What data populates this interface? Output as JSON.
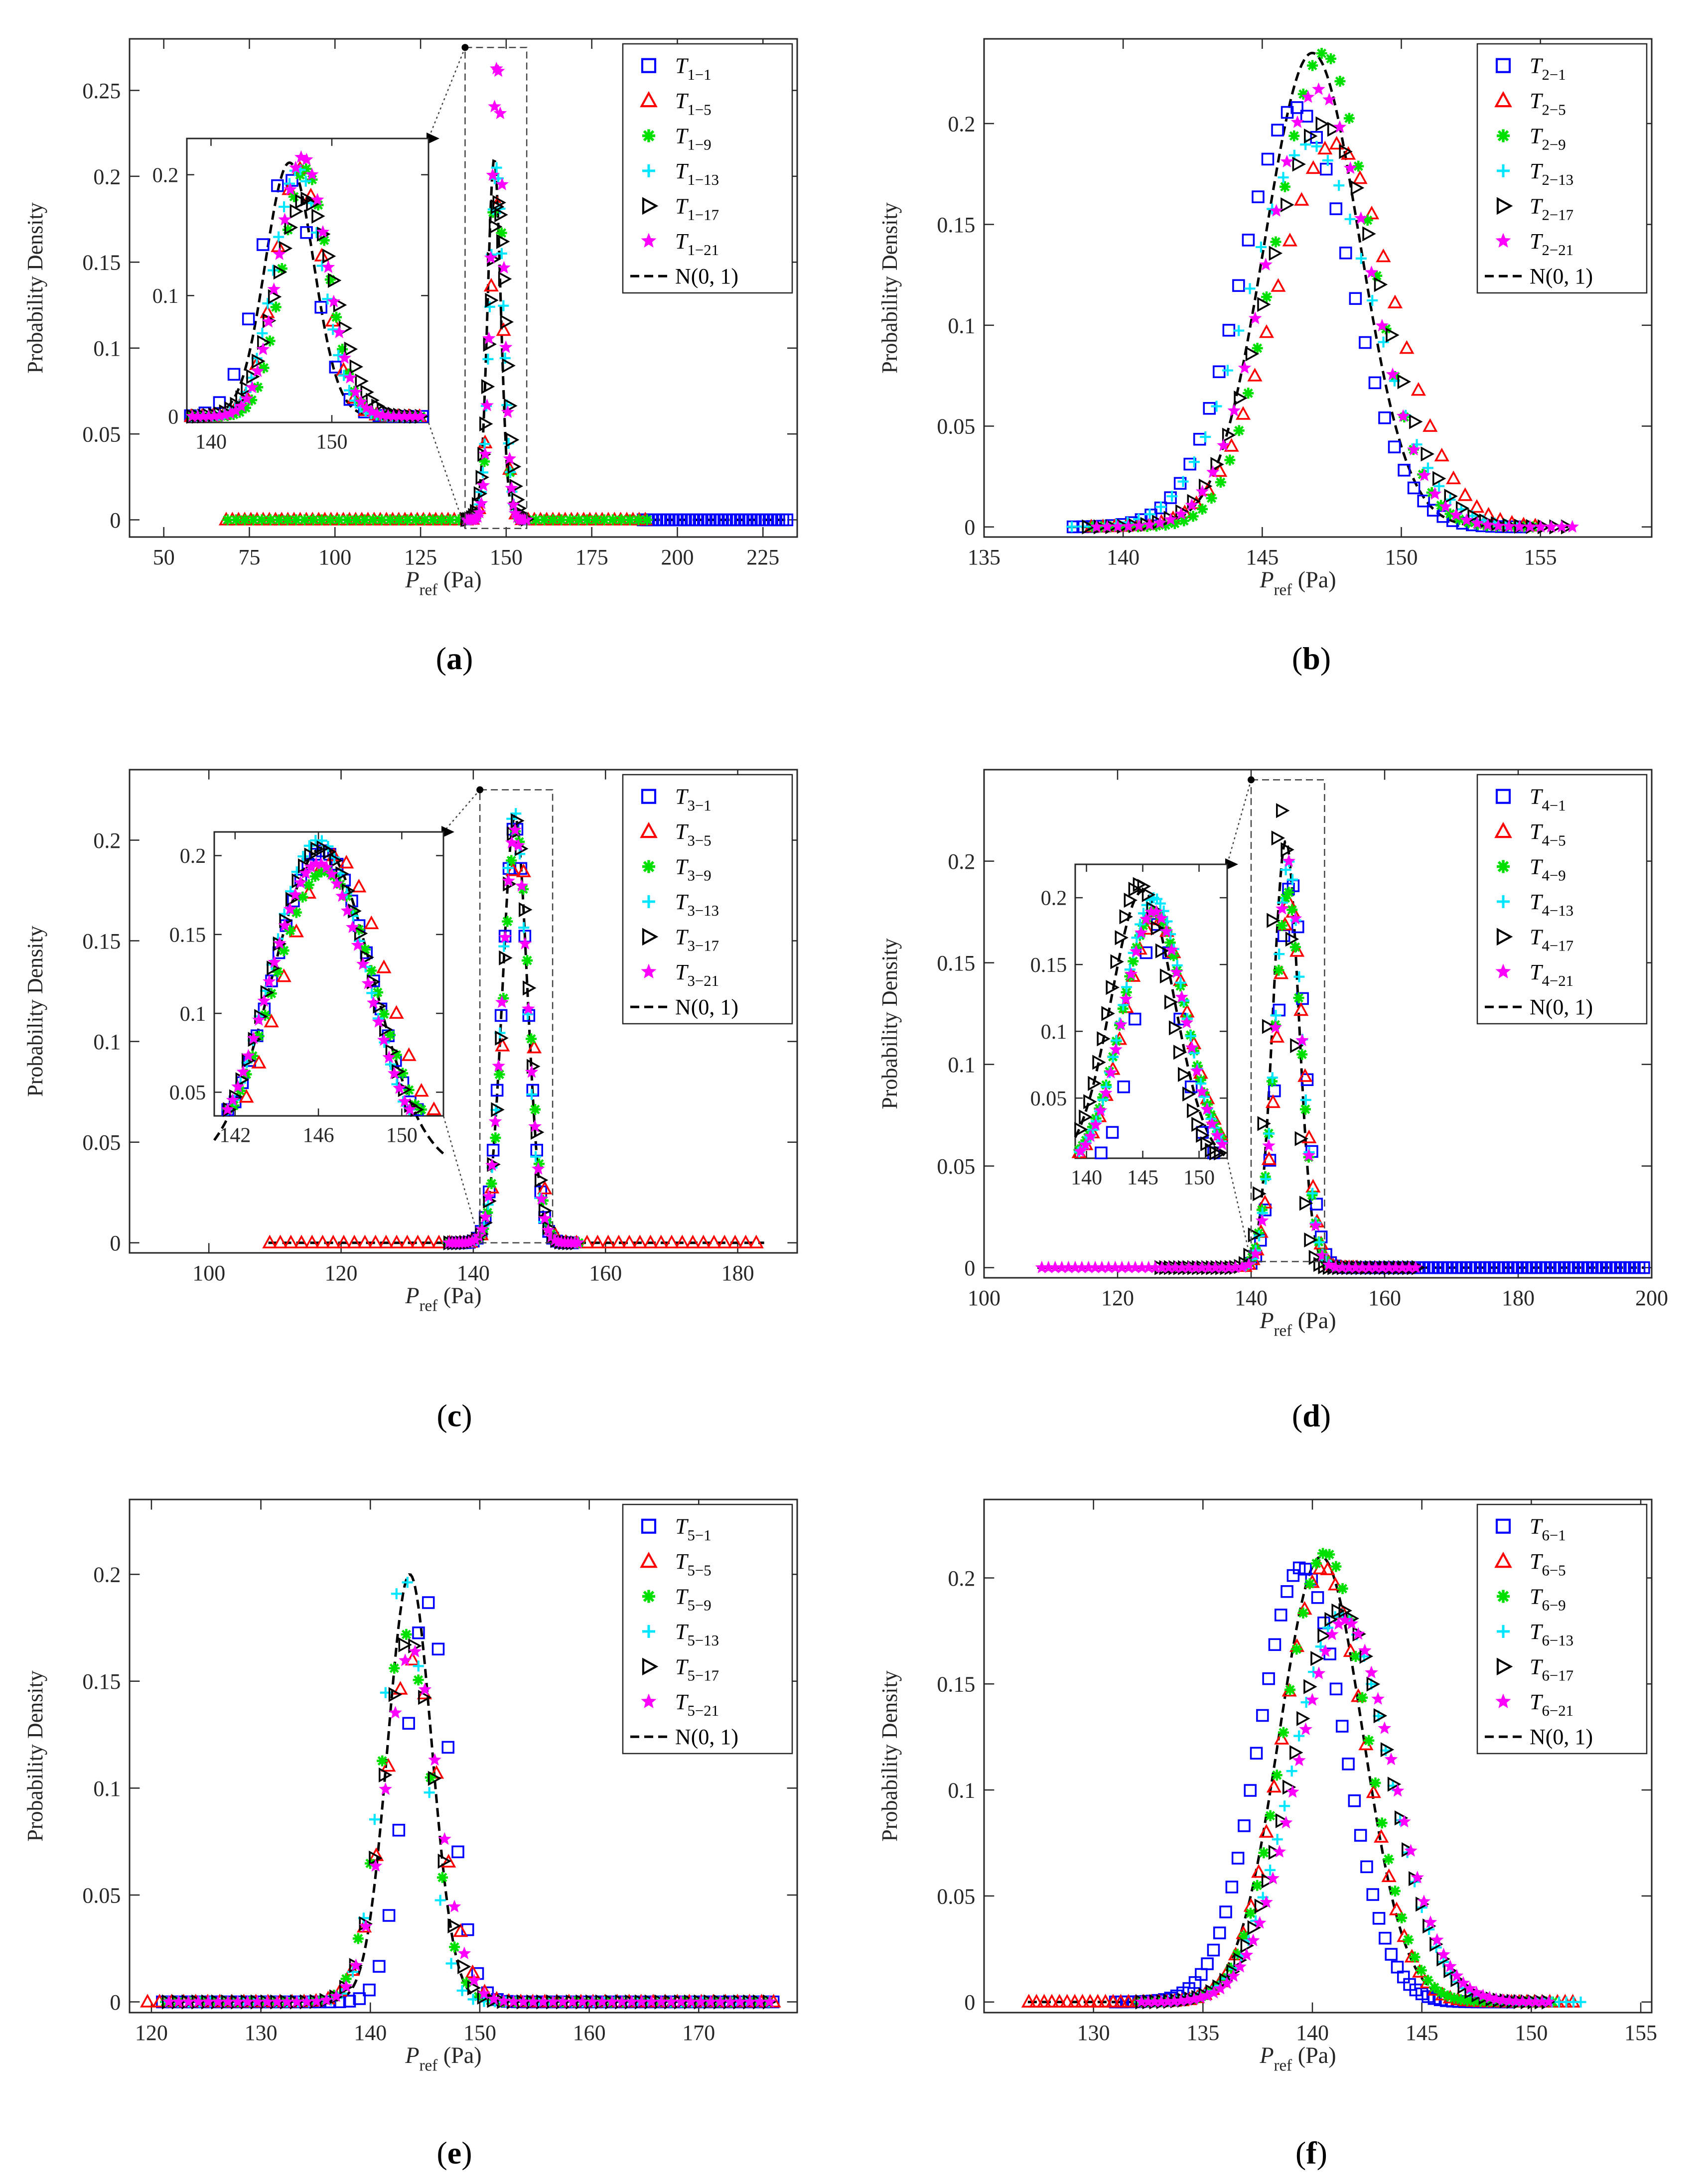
{
  "figure": {
    "panel_labels": [
      "(a)",
      "(b)",
      "(c)",
      "(d)",
      "(e)",
      "(f)"
    ]
  },
  "common": {
    "ylabel": "Probability Density",
    "xlabel_main": "P",
    "xlabel_sub": "ref",
    "xlabel_unit": "(Pa)",
    "legend_ref_label": "N(0, 1)",
    "series_suffixes": [
      "1",
      "5",
      "9",
      "13",
      "17",
      "21"
    ],
    "series_colors": [
      "#0000ff",
      "#ff0000",
      "#00e000",
      "#00e6ff",
      "#000000",
      "#ff00ff"
    ],
    "series_markers": [
      "square",
      "triangle",
      "asterisk",
      "plus",
      "triangle-right",
      "star"
    ],
    "ref_color": "#000000"
  },
  "chart_data": [
    {
      "id": "a",
      "type": "scatter",
      "title": "",
      "group": "1",
      "xlabel": "P_ref (Pa)",
      "ylabel": "Probability Density",
      "xlim": [
        40,
        235
      ],
      "ylim": [
        -0.01,
        0.28
      ],
      "xticks": [
        50,
        75,
        100,
        125,
        150,
        175,
        200,
        225
      ],
      "yticks": [
        0,
        0.05,
        0.1,
        0.15,
        0.2,
        0.25
      ],
      "ytick_labels": [
        "0",
        "0.05",
        "0.1",
        "0.15",
        "0.2",
        "0.25"
      ],
      "legend_position": "top-right",
      "series": [
        {
          "name": "T1-1",
          "mu": 144.5,
          "sigma": 2.0,
          "peak": 0.21,
          "range": [
            190,
            232
          ],
          "step": 1.2
        },
        {
          "name": "T1-5",
          "mu": 147.2,
          "sigma": 2.0,
          "peak": 0.185,
          "range": [
            68,
            192
          ],
          "step": 1.8
        },
        {
          "name": "T1-9",
          "mu": 147.3,
          "sigma": 1.9,
          "peak": 0.215,
          "range": [
            68,
            192
          ],
          "step": 2.5
        },
        {
          "name": "T1-13",
          "mu": 147.2,
          "sigma": 2.0,
          "peak": 0.205,
          "range": [
            138,
            156
          ],
          "step": 0.5
        },
        {
          "name": "T1-17",
          "mu": 147.5,
          "sigma": 2.4,
          "peak": 0.185,
          "range": [
            138,
            156
          ],
          "step": 0.55
        },
        {
          "name": "T1-21",
          "mu": 147.4,
          "sigma": 1.8,
          "peak": 0.265,
          "range": [
            138,
            156
          ],
          "step": 0.55
        }
      ],
      "reference": {
        "name": "N(0, 1)",
        "mu": 146.5,
        "sigma": 1.9,
        "peak": 0.21,
        "range": [
          68,
          232
        ]
      },
      "zoom_box": {
        "x": [
          138,
          156
        ],
        "y": [
          -0.005,
          0.275
        ]
      },
      "inset": {
        "xlim": [
          138,
          158
        ],
        "ylim": [
          -0.005,
          0.23
        ],
        "xticks": [
          140,
          150
        ],
        "yticks": [
          0,
          0.1,
          0.2
        ],
        "ytick_labels": [
          "0",
          "0.1",
          "0.2"
        ],
        "ref": {
          "mu": 146.5,
          "sigma": 2.0,
          "peak": 0.21
        },
        "series": [
          {
            "mu": 146.2,
            "sigma": 2.3,
            "peak": 0.2,
            "step": 1.2
          },
          {
            "mu": 147.3,
            "sigma": 2.0,
            "peak": 0.205,
            "step": 0.9
          },
          {
            "mu": 147.8,
            "sigma": 1.9,
            "peak": 0.205,
            "step": 0.5
          },
          {
            "mu": 147.2,
            "sigma": 2.0,
            "peak": 0.205,
            "step": 0.45
          },
          {
            "mu": 147.8,
            "sigma": 2.4,
            "peak": 0.18,
            "step": 0.45
          },
          {
            "mu": 147.6,
            "sigma": 2.0,
            "peak": 0.215,
            "step": 0.45
          }
        ]
      }
    },
    {
      "id": "b",
      "type": "scatter",
      "title": "",
      "group": "2",
      "xlabel": "P_ref (Pa)",
      "ylabel": "Probability Density",
      "xlim": [
        135,
        159
      ],
      "ylim": [
        -0.005,
        0.242
      ],
      "xticks": [
        135,
        140,
        145,
        150,
        155
      ],
      "yticks": [
        0,
        0.05,
        0.1,
        0.15,
        0.2
      ],
      "ytick_labels": [
        "0",
        "0.05",
        "0.1",
        "0.15",
        "0.2"
      ],
      "legend_position": "top-right",
      "series": [
        {
          "name": "T2-1",
          "mu": 146.2,
          "sigma": 1.95,
          "peak": 0.208,
          "range": [
            138.2,
            154.5
          ],
          "step": 0.35
        },
        {
          "name": "T2-5",
          "mu": 147.6,
          "sigma": 2.1,
          "peak": 0.19,
          "range": [
            138.8,
            155
          ],
          "step": 0.42
        },
        {
          "name": "T2-9",
          "mu": 147.2,
          "sigma": 1.7,
          "peak": 0.235,
          "range": [
            138.8,
            155
          ],
          "step": 0.33
        },
        {
          "name": "T2-13",
          "mu": 146.7,
          "sigma": 2.2,
          "peak": 0.19,
          "range": [
            138,
            155
          ],
          "step": 0.4
        },
        {
          "name": "T2-17",
          "mu": 147.2,
          "sigma": 2.0,
          "peak": 0.2,
          "range": [
            138.5,
            156
          ],
          "step": 0.42
        },
        {
          "name": "T2-21",
          "mu": 147.0,
          "sigma": 1.85,
          "peak": 0.217,
          "range": [
            138.8,
            156.5
          ],
          "step": 0.38
        }
      ],
      "reference": {
        "name": "N(0, 1)",
        "mu": 146.8,
        "sigma": 1.7,
        "peak": 0.235,
        "range": [
          138,
          156
        ]
      }
    },
    {
      "id": "c",
      "type": "scatter",
      "title": "",
      "group": "3",
      "xlabel": "P_ref (Pa)",
      "ylabel": "Probability Density",
      "xlim": [
        88,
        189
      ],
      "ylim": [
        -0.005,
        0.235
      ],
      "xticks": [
        100,
        120,
        140,
        160,
        180
      ],
      "yticks": [
        0,
        0.05,
        0.1,
        0.15,
        0.2
      ],
      "ytick_labels": [
        "0",
        "0.05",
        "0.1",
        "0.15",
        "0.2"
      ],
      "legend_position": "top-right",
      "series": [
        {
          "name": "T3-1",
          "mu": 146.3,
          "sigma": 1.9,
          "peak": 0.208,
          "range": [
            137,
            155
          ],
          "step": 0.6
        },
        {
          "name": "T3-5",
          "mu": 146.8,
          "sigma": 2.0,
          "peak": 0.2,
          "range": [
            109,
            184
          ],
          "step": 1.6
        },
        {
          "name": "T3-9",
          "mu": 146.5,
          "sigma": 1.9,
          "peak": 0.205,
          "range": [
            136,
            156
          ],
          "step": 0.6
        },
        {
          "name": "T3-13",
          "mu": 146.2,
          "sigma": 1.8,
          "peak": 0.215,
          "range": [
            136,
            156
          ],
          "step": 0.6
        },
        {
          "name": "T3-17",
          "mu": 146.4,
          "sigma": 1.9,
          "peak": 0.21,
          "range": [
            136,
            156
          ],
          "step": 0.6
        },
        {
          "name": "T3-21",
          "mu": 146.3,
          "sigma": 1.9,
          "peak": 0.205,
          "range": [
            136,
            156
          ],
          "step": 0.5
        }
      ],
      "reference": {
        "name": "N(0, 1)",
        "mu": 146.3,
        "sigma": 1.85,
        "peak": 0.212,
        "range": [
          109,
          184
        ]
      },
      "zoom_box": {
        "x": [
          141,
          152
        ],
        "y": [
          0,
          0.225
        ]
      },
      "inset": {
        "xlim": [
          141,
          152
        ],
        "ylim": [
          0.035,
          0.215
        ],
        "xticks": [
          142,
          146,
          150
        ],
        "yticks": [
          0.05,
          0.1,
          0.15,
          0.2
        ],
        "ytick_labels": [
          "0.05",
          "0.1",
          "0.15",
          "0.2"
        ],
        "ref": {
          "mu": 146.2,
          "sigma": 2.4,
          "peak": 0.205
        },
        "series": [
          {
            "mu": 146.2,
            "sigma": 2.4,
            "peak": 0.203,
            "step": 0.35
          },
          {
            "mu": 146.8,
            "sigma": 2.5,
            "peak": 0.2,
            "step": 0.6
          },
          {
            "mu": 146.3,
            "sigma": 2.5,
            "peak": 0.19,
            "step": 0.3
          },
          {
            "mu": 146.0,
            "sigma": 2.3,
            "peak": 0.21,
            "step": 0.3
          },
          {
            "mu": 146.1,
            "sigma": 2.4,
            "peak": 0.205,
            "step": 0.3
          },
          {
            "mu": 146.0,
            "sigma": 2.4,
            "peak": 0.195,
            "step": 0.25
          }
        ]
      }
    },
    {
      "id": "d",
      "type": "scatter",
      "title": "",
      "group": "4",
      "xlabel": "P_ref (Pa)",
      "ylabel": "Probability Density",
      "xlim": [
        100,
        200
      ],
      "ylim": [
        -0.005,
        0.245
      ],
      "xticks": [
        100,
        120,
        140,
        160,
        180,
        200
      ],
      "yticks": [
        0,
        0.05,
        0.1,
        0.15,
        0.2
      ],
      "ytick_labels": [
        "0",
        "0.05",
        "0.1",
        "0.15",
        "0.2"
      ],
      "legend_position": "top-right",
      "series": [
        {
          "name": "T4-1",
          "mu": 146.0,
          "sigma": 2.0,
          "peak": 0.19,
          "range": [
            140,
            199
          ],
          "step": 0.7
        },
        {
          "name": "T4-5",
          "mu": 145.8,
          "sigma": 2.0,
          "peak": 0.18,
          "range": [
            139,
            156
          ],
          "step": 0.6
        },
        {
          "name": "T4-9",
          "mu": 145.5,
          "sigma": 2.0,
          "peak": 0.185,
          "range": [
            139,
            156
          ],
          "step": 0.5
        },
        {
          "name": "T4-13",
          "mu": 145.6,
          "sigma": 1.95,
          "peak": 0.2,
          "range": [
            139,
            156
          ],
          "step": 0.5
        },
        {
          "name": "T4-17",
          "mu": 144.5,
          "sigma": 1.8,
          "peak": 0.225,
          "range": [
            126,
            165
          ],
          "step": 0.7
        },
        {
          "name": "T4-21",
          "mu": 145.6,
          "sigma": 1.9,
          "peak": 0.2,
          "range": [
            108,
            165
          ],
          "step": 1.0
        }
      ],
      "reference": {
        "name": "N(0, 1)",
        "mu": 145.2,
        "sigma": 1.9,
        "peak": 0.21,
        "range": [
          108,
          199
        ]
      },
      "zoom_box": {
        "x": [
          140,
          151
        ],
        "y": [
          0.003,
          0.24
        ]
      },
      "inset": {
        "xlim": [
          139,
          152.5
        ],
        "ylim": [
          0.005,
          0.225
        ],
        "xticks": [
          140,
          145,
          150
        ],
        "yticks": [
          0.05,
          0.1,
          0.15,
          0.2
        ],
        "ytick_labels": [
          "0.05",
          "0.1",
          "0.15",
          "0.2"
        ],
        "ref": {
          "mu": 145.0,
          "sigma": 2.8,
          "peak": 0.205
        },
        "series": [
          {
            "mu": 146.3,
            "sigma": 2.0,
            "peak": 0.18,
            "step": 1.0
          },
          {
            "mu": 146.2,
            "sigma": 2.8,
            "peak": 0.185,
            "step": 0.6
          },
          {
            "mu": 146.0,
            "sigma": 2.8,
            "peak": 0.19,
            "step": 0.3
          },
          {
            "mu": 146.0,
            "sigma": 2.7,
            "peak": 0.2,
            "step": 0.3
          },
          {
            "mu": 144.7,
            "sigma": 2.6,
            "peak": 0.21,
            "step": 0.4
          },
          {
            "mu": 146.0,
            "sigma": 2.7,
            "peak": 0.19,
            "step": 0.45
          }
        ]
      }
    },
    {
      "id": "e",
      "type": "scatter",
      "title": "",
      "group": "5",
      "xlabel": "P_ref (Pa)",
      "ylabel": "Probability Density",
      "xlim": [
        118,
        179
      ],
      "ylim": [
        -0.005,
        0.235
      ],
      "xticks": [
        120,
        130,
        140,
        150,
        160,
        170
      ],
      "yticks": [
        0,
        0.05,
        0.1,
        0.15,
        0.2
      ],
      "ytick_labels": [
        "0",
        "0.05",
        "0.1",
        "0.15",
        "0.2"
      ],
      "legend_position": "top-right",
      "series": [
        {
          "name": "T5-1",
          "mu": 145.2,
          "sigma": 2.0,
          "peak": 0.187,
          "range": [
            121,
            177
          ],
          "step": 0.9
        },
        {
          "name": "T5-5",
          "mu": 143.8,
          "sigma": 2.5,
          "peak": 0.16,
          "range": [
            119.5,
            177
          ],
          "step": 1.1
        },
        {
          "name": "T5-9",
          "mu": 143.2,
          "sigma": 2.3,
          "peak": 0.172,
          "range": [
            121,
            177
          ],
          "step": 1.1
        },
        {
          "name": "T5-13",
          "mu": 143.0,
          "sigma": 2.0,
          "peak": 0.2,
          "range": [
            121,
            177
          ],
          "step": 1.0
        },
        {
          "name": "T5-17",
          "mu": 143.5,
          "sigma": 2.3,
          "peak": 0.17,
          "range": [
            121,
            177
          ],
          "step": 0.9
        },
        {
          "name": "T5-21",
          "mu": 143.8,
          "sigma": 2.4,
          "peak": 0.165,
          "range": [
            121,
            177
          ],
          "step": 0.9
        }
      ],
      "reference": {
        "name": "N(0, 1)",
        "mu": 143.6,
        "sigma": 2.0,
        "peak": 0.2,
        "range": [
          121,
          177
        ]
      }
    },
    {
      "id": "f",
      "type": "scatter",
      "title": "",
      "group": "6",
      "xlabel": "P_ref (Pa)",
      "ylabel": "Probability Density",
      "xlim": [
        125,
        155.5
      ],
      "ylim": [
        -0.005,
        0.237
      ],
      "xticks": [
        130,
        135,
        140,
        145,
        150,
        155
      ],
      "yticks": [
        0,
        0.05,
        0.1,
        0.15,
        0.2
      ],
      "ytick_labels": [
        "0",
        "0.05",
        "0.1",
        "0.15",
        "0.2"
      ],
      "legend_position": "top-right",
      "series": [
        {
          "name": "T6-1",
          "mu": 139.5,
          "sigma": 1.95,
          "peak": 0.205,
          "range": [
            131,
            149
          ],
          "step": 0.28
        },
        {
          "name": "T6-5",
          "mu": 140.5,
          "sigma": 1.9,
          "peak": 0.205,
          "range": [
            127,
            152
          ],
          "step": 0.35
        },
        {
          "name": "T6-9",
          "mu": 140.6,
          "sigma": 1.9,
          "peak": 0.212,
          "range": [
            132,
            151
          ],
          "step": 0.3
        },
        {
          "name": "T6-13",
          "mu": 141.3,
          "sigma": 2.2,
          "peak": 0.183,
          "range": [
            132,
            152.5
          ],
          "step": 0.33
        },
        {
          "name": "T6-17",
          "mu": 141.3,
          "sigma": 2.2,
          "peak": 0.185,
          "range": [
            132,
            151
          ],
          "step": 0.32
        },
        {
          "name": "T6-21",
          "mu": 141.5,
          "sigma": 2.2,
          "peak": 0.18,
          "range": [
            132,
            151
          ],
          "step": 0.3
        }
      ],
      "reference": {
        "name": "N(0, 1)",
        "mu": 140.4,
        "sigma": 1.9,
        "peak": 0.21,
        "range": [
          127,
          151
        ]
      }
    }
  ]
}
